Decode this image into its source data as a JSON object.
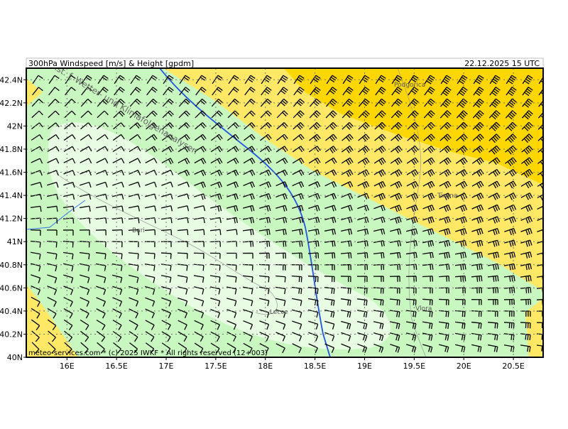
{
  "header": {
    "title": "300hPa Windspeed [m/s] & Height [gpdm]",
    "valid_time": "22.12.2025 15 UTC"
  },
  "watermark": "CETA Inst. f. Wetter- und Klimafolgenanalysen",
  "footer": "meteo-services.com * (c) 2025 IWKF * All rights reserved (12+003)",
  "map": {
    "xlim": [
      15.59,
      20.8
    ],
    "ylim": [
      40,
      42.5
    ],
    "lat_ticks": [
      {
        "value": 42.4,
        "label": "42.4N"
      },
      {
        "value": 42.2,
        "label": "42.2N"
      },
      {
        "value": 42,
        "label": "42N"
      },
      {
        "value": 41.8,
        "label": "41.8N"
      },
      {
        "value": 41.6,
        "label": "41.6N"
      },
      {
        "value": 41.4,
        "label": "41.4N"
      },
      {
        "value": 41.2,
        "label": "41.2N"
      },
      {
        "value": 41,
        "label": "41N"
      },
      {
        "value": 40.8,
        "label": "40.8N"
      },
      {
        "value": 40.6,
        "label": "40.6N"
      },
      {
        "value": 40.4,
        "label": "40.4N"
      },
      {
        "value": 40.2,
        "label": "40.2N"
      },
      {
        "value": 40,
        "label": "40N"
      }
    ],
    "lon_ticks": [
      {
        "value": 16,
        "label": "16E"
      },
      {
        "value": 16.5,
        "label": "16.5E"
      },
      {
        "value": 17,
        "label": "17E"
      },
      {
        "value": 17.5,
        "label": "17.5E"
      },
      {
        "value": 18,
        "label": "18E"
      },
      {
        "value": 18.5,
        "label": "18.5E"
      },
      {
        "value": 19,
        "label": "19E"
      },
      {
        "value": 19.5,
        "label": "19.5E"
      },
      {
        "value": 20,
        "label": "20E"
      },
      {
        "value": 20.5,
        "label": "20.5E"
      }
    ],
    "cities": [
      "Podgorica",
      "Tirana",
      "Bari",
      "Lecce",
      "Vlora"
    ]
  }
}
